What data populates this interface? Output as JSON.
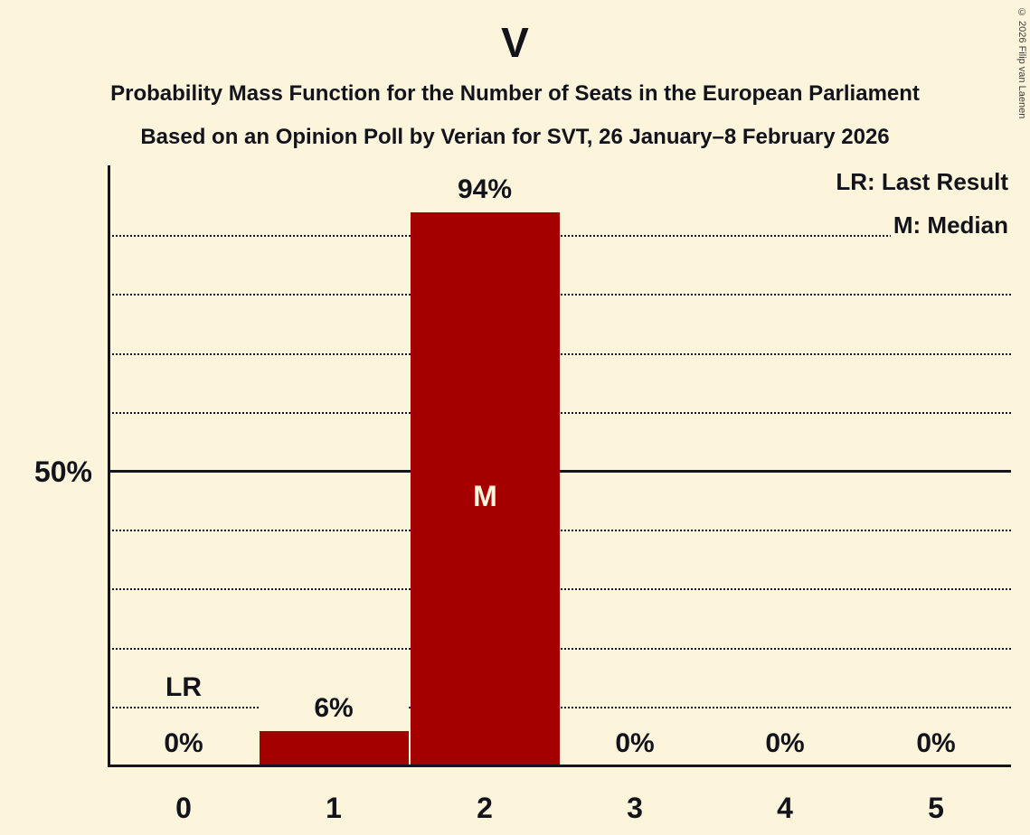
{
  "title": "V",
  "subtitle_line1": "Probability Mass Function for the Number of Seats in the European Parliament",
  "subtitle_line2": "Based on an Opinion Poll by Verian for SVT, 26 January–8 February 2026",
  "copyright": "© 2026 Filip van Laenen",
  "legend": {
    "last_result": "LR: Last Result",
    "median": "M: Median"
  },
  "colors": {
    "background": "#fcf5dc",
    "bar": "#a40000",
    "text": "#13131c"
  },
  "chart_data": {
    "type": "bar",
    "title": "V",
    "categories": [
      "0",
      "1",
      "2",
      "3",
      "4",
      "5"
    ],
    "values": [
      0,
      6,
      94,
      0,
      0,
      0
    ],
    "value_labels": [
      "0%",
      "6%",
      "94%",
      "0%",
      "0%",
      "0%"
    ],
    "xlabel": "",
    "ylabel": "",
    "ylim": [
      0,
      100
    ],
    "y_tick_labels": [
      "50%"
    ],
    "y_tick_values": [
      50
    ],
    "gridlines_pct": [
      10,
      20,
      30,
      40,
      50,
      60,
      70,
      80,
      90
    ],
    "solid_gridline_pct": 50,
    "median_marker": {
      "category": "2",
      "label": "M"
    },
    "last_result_marker": {
      "category": "0",
      "label": "LR"
    },
    "legend_position": "top-right",
    "grid": true
  }
}
